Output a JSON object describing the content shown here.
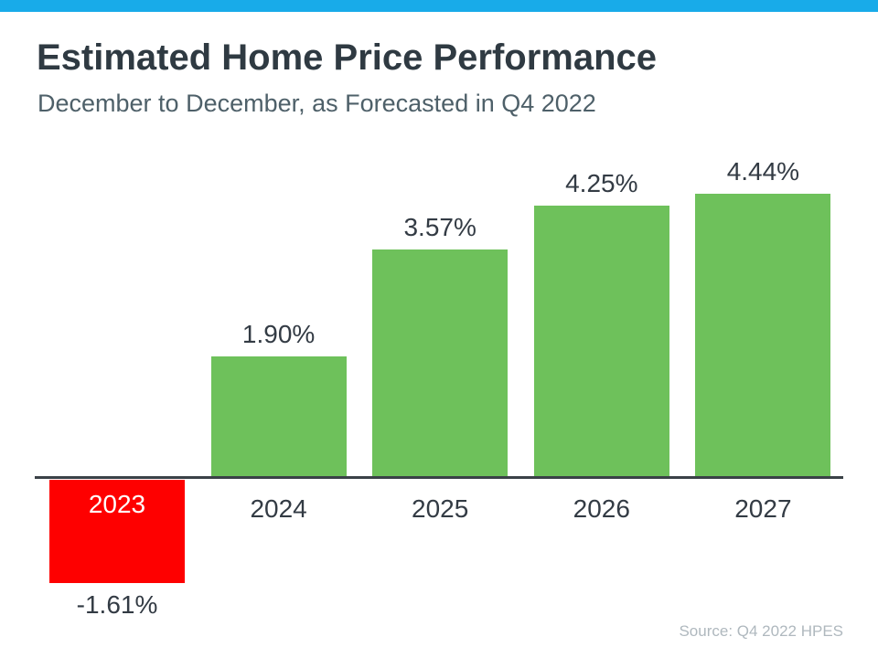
{
  "page": {
    "accent_bar_color": "#18ABE9",
    "background_color": "#FFFFFF"
  },
  "header": {
    "title": "Estimated Home Price Performance",
    "subtitle": "December to December, as Forecasted in Q4 2022"
  },
  "footer": {
    "source_note": "Source: Q4 2022 HPES"
  },
  "chart_data": {
    "type": "bar",
    "title": "Estimated Home Price Performance",
    "subtitle": "December to December, as Forecasted in Q4 2022",
    "categories": [
      "2023",
      "2024",
      "2025",
      "2026",
      "2027"
    ],
    "values": [
      -1.61,
      1.9,
      3.57,
      4.25,
      4.44
    ],
    "value_labels": [
      "-1.61%",
      "1.90%",
      "3.57%",
      "4.25%",
      "4.44%"
    ],
    "xlabel": "",
    "ylabel": "",
    "ylim": [
      -2,
      5
    ],
    "grid": false,
    "legend": false,
    "baseline": 0,
    "positive_color": "#6EC15B",
    "negative_color": "#FE0000",
    "axis_color": "#3A4147",
    "label_color": "#333B44",
    "negative_category_label_color": "#FFFFFF",
    "source": "Source: Q4 2022 HPES"
  }
}
